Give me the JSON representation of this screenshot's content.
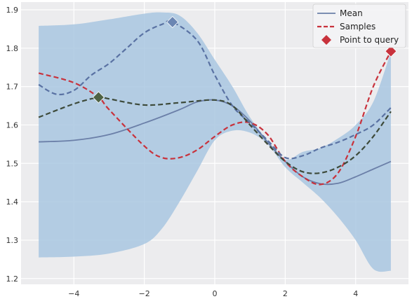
{
  "chart_data": {
    "type": "line",
    "title": "",
    "xlabel": "",
    "ylabel": "",
    "xlim": [
      -5.5,
      5.5
    ],
    "ylim": [
      1.185,
      1.92
    ],
    "x_ticks": [
      -4,
      -2,
      0,
      2,
      4
    ],
    "x_tick_labels": [
      "−4",
      "−2",
      "0",
      "2",
      "4"
    ],
    "y_ticks": [
      1.2,
      1.3,
      1.4,
      1.5,
      1.6,
      1.7,
      1.8,
      1.9
    ],
    "y_tick_labels": [
      "1.2",
      "1.3",
      "1.4",
      "1.5",
      "1.6",
      "1.7",
      "1.8",
      "1.9"
    ],
    "grid": true,
    "legend_position": "top-right",
    "legend": [
      {
        "label": "Mean",
        "style": "solid-line",
        "color": "#6b7fa8"
      },
      {
        "label": "Samples",
        "style": "dashed-line",
        "color": "#c8323c"
      },
      {
        "label": "Point to query",
        "style": "diamond-marker",
        "color": "#c8323c"
      }
    ],
    "confidence_band": {
      "color": "#a9c7e0",
      "x": [
        -5,
        -4,
        -3,
        -2,
        -1.5,
        -1,
        -0.5,
        0,
        0.5,
        1,
        1.5,
        2,
        2.5,
        3,
        3.5,
        4,
        4.5,
        5
      ],
      "upper": [
        1.858,
        1.862,
        1.875,
        1.89,
        1.893,
        1.885,
        1.84,
        1.77,
        1.7,
        1.62,
        1.56,
        1.51,
        1.53,
        1.54,
        1.565,
        1.6,
        1.66,
        1.79
      ],
      "lower": [
        1.255,
        1.257,
        1.265,
        1.29,
        1.33,
        1.4,
        1.48,
        1.56,
        1.585,
        1.58,
        1.55,
        1.49,
        1.45,
        1.41,
        1.36,
        1.3,
        1.225,
        1.22
      ]
    },
    "series": [
      {
        "name": "Mean",
        "style": "solid",
        "color": "#6b7fa8",
        "x": [
          -5,
          -4,
          -3,
          -2,
          -1,
          -0.5,
          0,
          0.5,
          1,
          1.5,
          2,
          2.5,
          3,
          3.5,
          4,
          4.5,
          5
        ],
        "y": [
          1.556,
          1.56,
          1.575,
          1.605,
          1.64,
          1.66,
          1.665,
          1.65,
          1.61,
          1.555,
          1.505,
          1.465,
          1.447,
          1.448,
          1.465,
          1.485,
          1.505
        ]
      },
      {
        "name": "Samples",
        "style": "dashed",
        "color": "#c8323c",
        "x": [
          -5,
          -4,
          -3.3,
          -3,
          -2,
          -1.5,
          -1,
          -0.5,
          0,
          0.5,
          1,
          1.5,
          2,
          2.5,
          3,
          3.5,
          4,
          4.5,
          5
        ],
        "y": [
          1.735,
          1.71,
          1.672,
          1.64,
          1.545,
          1.515,
          1.515,
          1.535,
          1.57,
          1.6,
          1.606,
          1.575,
          1.505,
          1.465,
          1.445,
          1.475,
          1.57,
          1.7,
          1.792
        ]
      },
      {
        "name": "",
        "style": "dashed",
        "color": "#5a72a3",
        "x": [
          -5,
          -4.5,
          -4,
          -3.5,
          -3,
          -2.5,
          -2,
          -1.5,
          -1.2,
          -0.5,
          0,
          0.5,
          1,
          1.5,
          2,
          2.5,
          3,
          3.5,
          4,
          4.5,
          5
        ],
        "y": [
          1.705,
          1.68,
          1.69,
          1.73,
          1.76,
          1.8,
          1.84,
          1.862,
          1.868,
          1.82,
          1.73,
          1.65,
          1.605,
          1.56,
          1.515,
          1.52,
          1.54,
          1.555,
          1.575,
          1.6,
          1.645
        ]
      },
      {
        "name": "",
        "style": "dashed",
        "color": "#3d4a3a",
        "x": [
          -5,
          -4,
          -3.3,
          -3,
          -2,
          -1,
          0,
          0.5,
          1,
          1.5,
          2,
          2.5,
          3,
          3.5,
          4,
          4.5,
          5
        ],
        "y": [
          1.62,
          1.655,
          1.672,
          1.668,
          1.652,
          1.658,
          1.665,
          1.65,
          1.6,
          1.55,
          1.505,
          1.478,
          1.475,
          1.49,
          1.52,
          1.57,
          1.635
        ]
      }
    ],
    "markers": [
      {
        "x": 5.0,
        "y": 1.792,
        "color": "#c8323c",
        "shape": "diamond"
      },
      {
        "x": -1.2,
        "y": 1.868,
        "color": "#6b86b3",
        "shape": "diamond"
      },
      {
        "x": -3.3,
        "y": 1.672,
        "color": "#4e6245",
        "shape": "diamond"
      }
    ]
  }
}
